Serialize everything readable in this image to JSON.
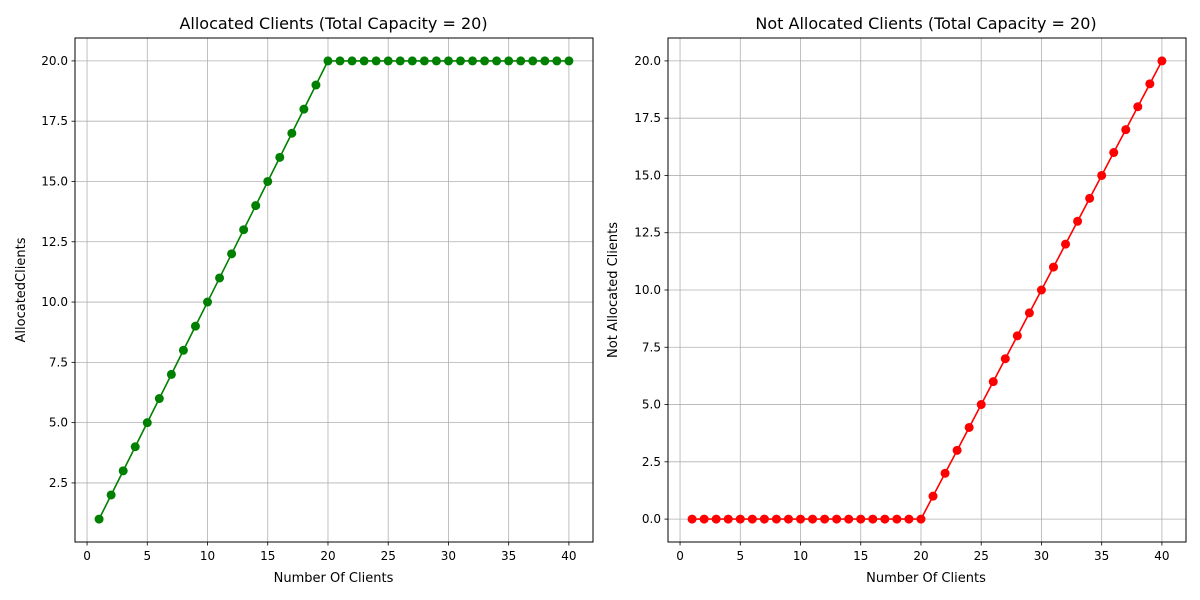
{
  "chart_data": [
    {
      "type": "line",
      "title": "Allocated Clients (Total Capacity = 20)",
      "xlabel": "Number Of Clients",
      "ylabel": "AllocatedClients",
      "xlim": [
        -1,
        42
      ],
      "ylim": [
        0.05,
        20.95
      ],
      "xticks": [
        0,
        5,
        10,
        15,
        20,
        25,
        30,
        35,
        40
      ],
      "xtick_labels": [
        "0",
        "5",
        "10",
        "15",
        "20",
        "25",
        "30",
        "35",
        "40"
      ],
      "yticks": [
        2.5,
        5.0,
        7.5,
        10.0,
        12.5,
        15.0,
        17.5,
        20.0
      ],
      "ytick_labels": [
        "2.5",
        "5.0",
        "7.5",
        "10.0",
        "12.5",
        "15.0",
        "17.5",
        "20.0"
      ],
      "grid": true,
      "color": "#008000",
      "marker": "circle",
      "x": [
        1,
        2,
        3,
        4,
        5,
        6,
        7,
        8,
        9,
        10,
        11,
        12,
        13,
        14,
        15,
        16,
        17,
        18,
        19,
        20,
        21,
        22,
        23,
        24,
        25,
        26,
        27,
        28,
        29,
        30,
        31,
        32,
        33,
        34,
        35,
        36,
        37,
        38,
        39,
        40
      ],
      "y": [
        1,
        2,
        3,
        4,
        5,
        6,
        7,
        8,
        9,
        10,
        11,
        12,
        13,
        14,
        15,
        16,
        17,
        18,
        19,
        20,
        20,
        20,
        20,
        20,
        20,
        20,
        20,
        20,
        20,
        20,
        20,
        20,
        20,
        20,
        20,
        20,
        20,
        20,
        20,
        20
      ]
    },
    {
      "type": "line",
      "title": "Not Allocated Clients (Total Capacity = 20)",
      "xlabel": "Number Of Clients",
      "ylabel": "Not Allocated Clients",
      "xlim": [
        -1,
        42
      ],
      "ylim": [
        -1,
        21
      ],
      "xticks": [
        0,
        5,
        10,
        15,
        20,
        25,
        30,
        35,
        40
      ],
      "xtick_labels": [
        "0",
        "5",
        "10",
        "15",
        "20",
        "25",
        "30",
        "35",
        "40"
      ],
      "yticks": [
        0.0,
        2.5,
        5.0,
        7.5,
        10.0,
        12.5,
        15.0,
        17.5,
        20.0
      ],
      "ytick_labels": [
        "0.0",
        "2.5",
        "5.0",
        "7.5",
        "10.0",
        "12.5",
        "15.0",
        "17.5",
        "20.0"
      ],
      "grid": true,
      "color": "#ff0000",
      "marker": "circle",
      "x": [
        1,
        2,
        3,
        4,
        5,
        6,
        7,
        8,
        9,
        10,
        11,
        12,
        13,
        14,
        15,
        16,
        17,
        18,
        19,
        20,
        21,
        22,
        23,
        24,
        25,
        26,
        27,
        28,
        29,
        30,
        31,
        32,
        33,
        34,
        35,
        36,
        37,
        38,
        39,
        40
      ],
      "y": [
        0,
        0,
        0,
        0,
        0,
        0,
        0,
        0,
        0,
        0,
        0,
        0,
        0,
        0,
        0,
        0,
        0,
        0,
        0,
        0,
        1,
        2,
        3,
        4,
        5,
        6,
        7,
        8,
        9,
        10,
        11,
        12,
        13,
        14,
        15,
        16,
        17,
        18,
        19,
        20
      ]
    }
  ]
}
